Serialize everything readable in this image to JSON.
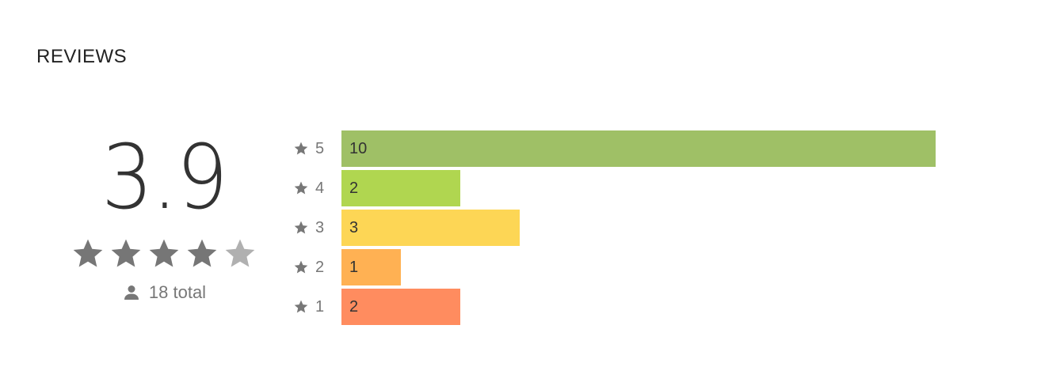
{
  "section": {
    "title": "REVIEWS"
  },
  "summary": {
    "score": "3.9",
    "star_fill": 0.78,
    "total_label": "18 total",
    "star_color": "#767676",
    "star_empty_color": "#b0b0b0",
    "user_icon": "person-icon"
  },
  "histogram": {
    "max_count": 10,
    "rows": [
      {
        "stars": "5",
        "count": "10",
        "value": 10,
        "color": "#9fc066"
      },
      {
        "stars": "4",
        "count": "2",
        "value": 2,
        "color": "#b0d650"
      },
      {
        "stars": "3",
        "count": "3",
        "value": 3,
        "color": "#fdd655"
      },
      {
        "stars": "2",
        "count": "1",
        "value": 1,
        "color": "#ffb153"
      },
      {
        "stars": "1",
        "count": "2",
        "value": 2,
        "color": "#ff8c5f"
      }
    ]
  }
}
